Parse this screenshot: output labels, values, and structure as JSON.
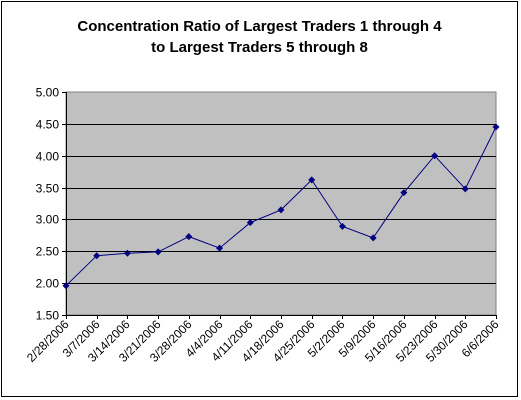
{
  "chart_data": {
    "type": "line",
    "title_lines": [
      "Concentration Ratio of Largest Traders 1 through 4",
      "to Largest Traders 5 through 8"
    ],
    "xlabel": "",
    "ylabel": "",
    "ylim": [
      1.5,
      5.0
    ],
    "yticks": [
      "1.50",
      "2.00",
      "2.50",
      "3.00",
      "3.50",
      "4.00",
      "4.50",
      "5.00"
    ],
    "grid": true,
    "legend": "none",
    "plot_background": "#c0c0c0",
    "line_color": "#000080",
    "categories": [
      "2/28/2006",
      "3/7/2006",
      "3/14/2006",
      "3/21/2006",
      "3/28/2006",
      "4/4/2006",
      "4/11/2006",
      "4/18/2006",
      "4/25/2006",
      "5/2/2006",
      "5/9/2006",
      "5/16/2006",
      "5/23/2006",
      "5/30/2006",
      "6/6/2006"
    ],
    "values": [
      1.96,
      2.43,
      2.47,
      2.49,
      2.73,
      2.55,
      2.95,
      3.15,
      3.62,
      2.89,
      2.71,
      3.42,
      4.0,
      3.48,
      4.45
    ]
  }
}
